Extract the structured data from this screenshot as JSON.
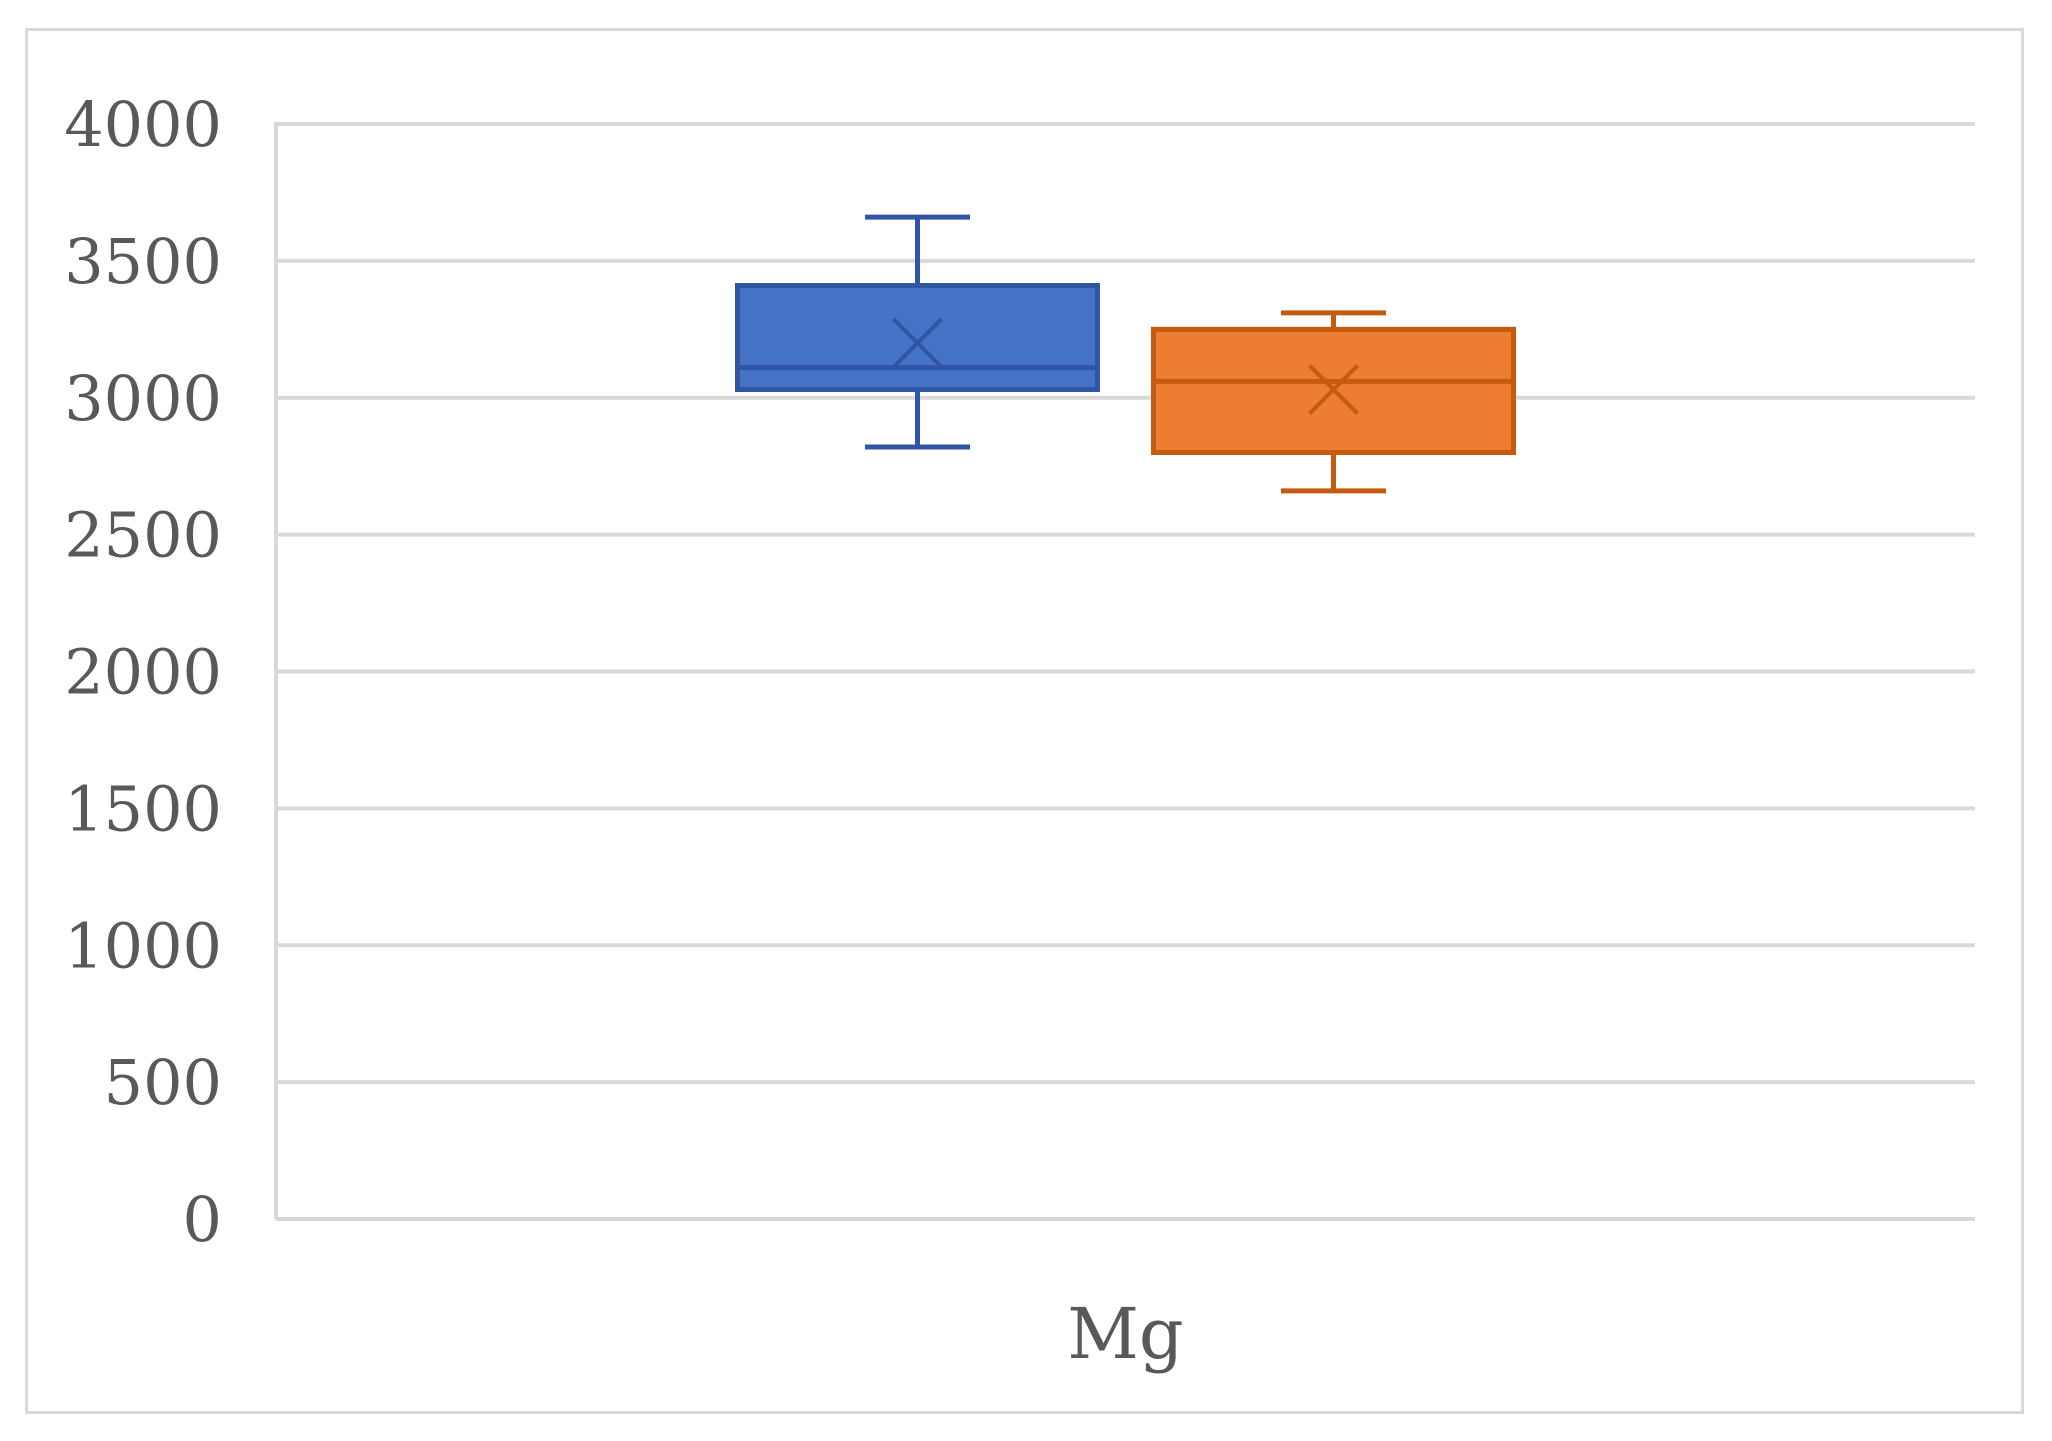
{
  "chart_data": {
    "type": "box",
    "categories": [
      "Mg"
    ],
    "ylim": [
      0,
      4000
    ],
    "yticks": [
      0,
      500,
      1000,
      1500,
      2000,
      2500,
      3000,
      3500,
      4000
    ],
    "grid": true,
    "series": [
      {
        "color": "#4472c4",
        "stroke": "#2f55a4",
        "min": 2820,
        "q1": 3030,
        "median": 3110,
        "mean": 3200,
        "q3": 3410,
        "max": 3660
      },
      {
        "color": "#ed7d31",
        "stroke": "#c55a11",
        "min": 2660,
        "q1": 2800,
        "median": 3060,
        "mean": 3030,
        "q3": 3250,
        "max": 3310
      }
    ]
  }
}
